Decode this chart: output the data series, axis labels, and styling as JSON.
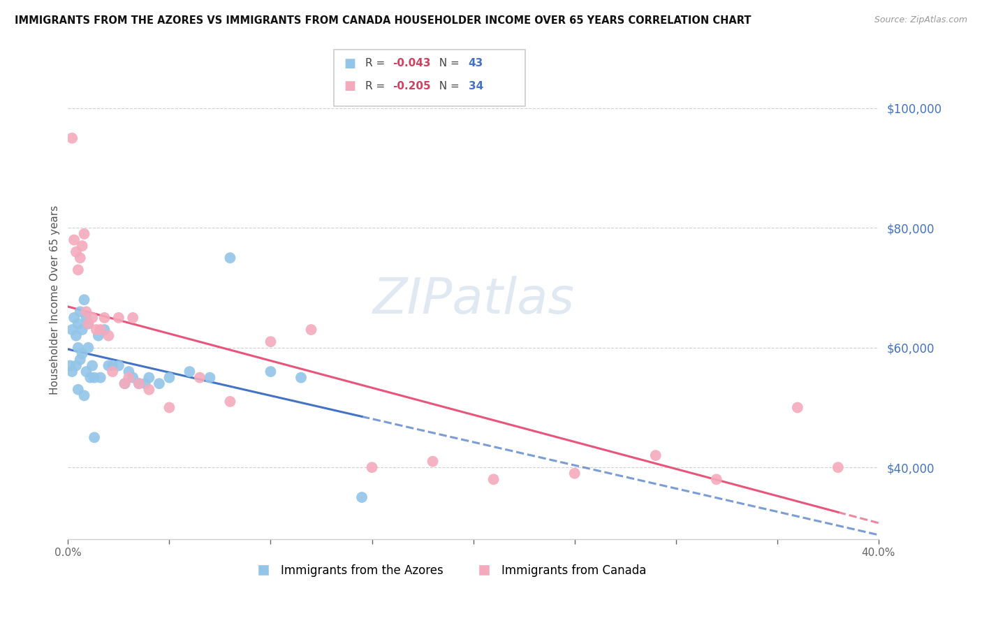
{
  "title": "IMMIGRANTS FROM THE AZORES VS IMMIGRANTS FROM CANADA HOUSEHOLDER INCOME OVER 65 YEARS CORRELATION CHART",
  "source": "Source: ZipAtlas.com",
  "ylabel": "Householder Income Over 65 years",
  "xlim": [
    0.0,
    0.4
  ],
  "ylim": [
    28000,
    108000
  ],
  "yticks_right_labels": [
    "$40,000",
    "$60,000",
    "$80,000",
    "$100,000"
  ],
  "yticks_right_vals": [
    40000,
    60000,
    80000,
    100000
  ],
  "legend_azores": "Immigrants from the Azores",
  "legend_canada": "Immigrants from Canada",
  "R_azores": "-0.043",
  "N_azores": "43",
  "R_canada": "-0.205",
  "N_canada": "34",
  "color_azores": "#92C5E8",
  "color_canada": "#F4AABC",
  "color_azores_line": "#4472C4",
  "color_canada_line": "#E8547A",
  "color_right_axis": "#4472C4",
  "azores_x": [
    0.001,
    0.002,
    0.002,
    0.003,
    0.004,
    0.004,
    0.005,
    0.005,
    0.005,
    0.006,
    0.006,
    0.007,
    0.007,
    0.008,
    0.008,
    0.009,
    0.009,
    0.01,
    0.01,
    0.011,
    0.012,
    0.013,
    0.013,
    0.015,
    0.016,
    0.018,
    0.02,
    0.022,
    0.025,
    0.028,
    0.03,
    0.032,
    0.035,
    0.038,
    0.04,
    0.045,
    0.05,
    0.06,
    0.07,
    0.08,
    0.1,
    0.115,
    0.145
  ],
  "azores_y": [
    57000,
    63000,
    56000,
    65000,
    62000,
    57000,
    64000,
    60000,
    53000,
    66000,
    58000,
    63000,
    59000,
    68000,
    52000,
    65000,
    56000,
    60000,
    64000,
    55000,
    57000,
    55000,
    45000,
    62000,
    55000,
    63000,
    57000,
    57000,
    57000,
    54000,
    56000,
    55000,
    54000,
    54000,
    55000,
    54000,
    55000,
    56000,
    55000,
    75000,
    56000,
    55000,
    35000
  ],
  "canada_x": [
    0.002,
    0.003,
    0.004,
    0.005,
    0.006,
    0.007,
    0.008,
    0.009,
    0.01,
    0.012,
    0.014,
    0.016,
    0.018,
    0.02,
    0.022,
    0.025,
    0.028,
    0.03,
    0.032,
    0.035,
    0.04,
    0.05,
    0.065,
    0.08,
    0.1,
    0.12,
    0.15,
    0.18,
    0.21,
    0.25,
    0.29,
    0.32,
    0.36,
    0.38
  ],
  "canada_y": [
    95000,
    78000,
    76000,
    73000,
    75000,
    77000,
    79000,
    66000,
    64000,
    65000,
    63000,
    63000,
    65000,
    62000,
    56000,
    65000,
    54000,
    55000,
    65000,
    54000,
    53000,
    50000,
    55000,
    51000,
    61000,
    63000,
    40000,
    41000,
    38000,
    39000,
    42000,
    38000,
    50000,
    40000
  ]
}
